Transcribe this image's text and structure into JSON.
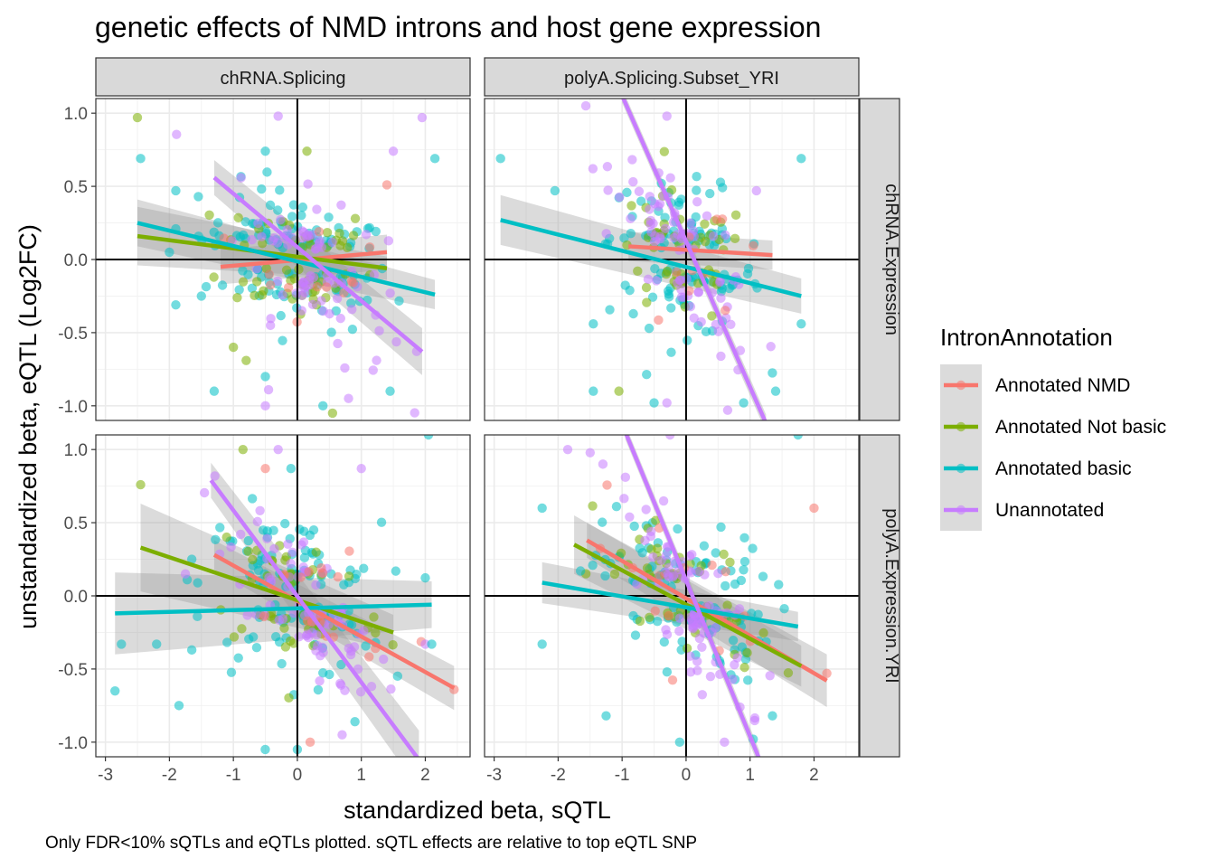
{
  "title": "genetic effects of NMD introns and host gene expression",
  "caption": "Only FDR<10% sQTLs and eQTLs plotted. sQTL effects are relative to top eQTL SNP",
  "colors": {
    "Annotated NMD": "#F8766D",
    "Annotated Not basic": "#7CAE00",
    "Annotated basic": "#00BFC4",
    "Unannotated": "#C77CFF",
    "strip_bg": "#D9D9D9",
    "grid": "#EBEBEB",
    "ribbon": "#999999"
  },
  "chart_data": {
    "type": "scatter",
    "facet_cols": [
      "chRNA.Splicing",
      "polyA.Splicing.Subset_YRI"
    ],
    "facet_rows": [
      "chRNA.Expression",
      "polyA.Expression.YRI"
    ],
    "xlabel": "standardized beta, sQTL",
    "ylabel": "unstandardized beta, eQTL (Log2FC)",
    "xlim": [
      -3.15,
      2.7
    ],
    "ylim": [
      -1.1,
      1.1
    ],
    "x_ticks": [
      -3,
      -2,
      -1,
      0,
      1,
      2
    ],
    "x_tick_labels": [
      "-3",
      "-2",
      "-1",
      "0",
      "1",
      "2"
    ],
    "y_ticks": [
      -1.0,
      -0.5,
      0.0,
      0.5,
      1.0
    ],
    "y_tick_labels": [
      "-1.0",
      "-0.5",
      "0.0",
      "0.5",
      "1.0"
    ],
    "legend": {
      "title": "IntronAnnotation",
      "position": "right",
      "entries": [
        "Annotated NMD",
        "Annotated Not basic",
        "Annotated basic",
        "Unannotated"
      ]
    },
    "panels": [
      {
        "col": "chRNA.Splicing",
        "row": "chRNA.Expression",
        "fits": [
          {
            "series": "Annotated NMD",
            "x": [
              -1.2,
              1.4
            ],
            "y": [
              -0.05,
              0.05
            ],
            "se": [
              0.12,
              0.12
            ]
          },
          {
            "series": "Annotated Not basic",
            "x": [
              -2.5,
              1.4
            ],
            "y": [
              0.16,
              -0.06
            ],
            "se": [
              0.2,
              0.08
            ]
          },
          {
            "series": "Annotated basic",
            "x": [
              -2.5,
              2.15
            ],
            "y": [
              0.25,
              -0.24
            ],
            "se": [
              0.16,
              0.1
            ]
          },
          {
            "series": "Unannotated",
            "x": [
              -1.3,
              1.95
            ],
            "y": [
              0.56,
              -0.63
            ],
            "se": [
              0.12,
              0.16
            ]
          }
        ],
        "fixed_points": [
          {
            "series": "Annotated Not basic",
            "x": -2.5,
            "y": 0.97
          },
          {
            "series": "Annotated basic",
            "x": -2.45,
            "y": 0.69
          },
          {
            "series": "Unannotated",
            "x": -0.3,
            "y": 0.98
          },
          {
            "series": "Unannotated",
            "x": 1.95,
            "y": 0.97
          },
          {
            "series": "Annotated basic",
            "x": 2.15,
            "y": 0.69
          },
          {
            "series": "Annotated Not basic",
            "x": 0.15,
            "y": 0.74
          },
          {
            "series": "Annotated basic",
            "x": -0.5,
            "y": 0.74
          },
          {
            "series": "Unannotated",
            "x": 1.5,
            "y": 0.74
          },
          {
            "series": "Annotated basic",
            "x": -1.9,
            "y": 0.47
          },
          {
            "series": "Annotated basic",
            "x": -1.3,
            "y": -0.9
          },
          {
            "series": "Annotated Not basic",
            "x": -1.0,
            "y": -0.6
          },
          {
            "series": "Annotated Not basic",
            "x": -0.8,
            "y": -0.69
          },
          {
            "series": "Annotated basic",
            "x": -0.5,
            "y": -0.8
          },
          {
            "series": "Unannotated",
            "x": -0.45,
            "y": -0.89
          },
          {
            "series": "Unannotated",
            "x": -0.5,
            "y": -1.0
          },
          {
            "series": "Annotated basic",
            "x": 0.4,
            "y": -1.0
          },
          {
            "series": "Annotated Not basic",
            "x": 0.55,
            "y": -1.05
          },
          {
            "series": "Annotated basic",
            "x": 1.45,
            "y": -0.9
          },
          {
            "series": "Unannotated",
            "x": 0.8,
            "y": -0.95
          },
          {
            "series": "Annotated NMD",
            "x": 1.4,
            "y": 0.51
          },
          {
            "series": "Annotated basic",
            "x": -1.9,
            "y": 0.21
          },
          {
            "series": "Annotated basic",
            "x": -2.0,
            "y": 0.05
          },
          {
            "series": "Annotated basic",
            "x": -1.9,
            "y": -0.31
          },
          {
            "series": "Annotated basic",
            "x": -1.5,
            "y": -0.25
          }
        ],
        "clouds": [
          {
            "series": "Annotated basic",
            "n": 110,
            "xm": 0.0,
            "xs": 0.75,
            "slope": -0.1,
            "ys": 0.22
          },
          {
            "series": "Annotated Not basic",
            "n": 55,
            "xm": 0.0,
            "xs": 0.6,
            "slope": -0.05,
            "ys": 0.22
          },
          {
            "series": "Unannotated",
            "n": 75,
            "xm": 0.2,
            "xs": 0.6,
            "slope": -0.3,
            "ys": 0.25
          },
          {
            "series": "Annotated NMD",
            "n": 12,
            "xm": 0.3,
            "xs": 0.5,
            "slope": 0.02,
            "ys": 0.2
          }
        ]
      },
      {
        "col": "polyA.Splicing.Subset_YRI",
        "row": "chRNA.Expression",
        "fits": [
          {
            "series": "Annotated NMD",
            "x": [
              -0.9,
              1.35
            ],
            "y": [
              0.09,
              0.03
            ],
            "se": [
              0.1,
              0.1
            ]
          },
          {
            "series": "Annotated Not basic",
            "x": -1.15,
            "y": 0,
            "se": 0,
            "_x": 0
          },
          {
            "series": "Annotated basic",
            "x": [
              -2.9,
              1.8
            ],
            "y": [
              0.27,
              -0.25
            ],
            "se": [
              0.17,
              0.12
            ]
          },
          {
            "series": "Unannotated",
            "x": [
              -1.0,
              1.25
            ],
            "y": [
              1.12,
              -1.12
            ],
            "se": [
              0.05,
              0.06
            ]
          }
        ],
        "fixed_points": [
          {
            "series": "Annotated basic",
            "x": -2.9,
            "y": 0.69
          },
          {
            "series": "Annotated basic",
            "x": -2.05,
            "y": 0.47
          },
          {
            "series": "Unannotated",
            "x": -0.3,
            "y": 0.98
          },
          {
            "series": "Annotated basic",
            "x": 1.8,
            "y": 0.69
          },
          {
            "series": "Annotated basic",
            "x": -1.45,
            "y": -0.9
          },
          {
            "series": "Annotated Not basic",
            "x": -1.05,
            "y": -0.9
          },
          {
            "series": "Annotated basic",
            "x": -0.5,
            "y": -0.98
          },
          {
            "series": "Unannotated",
            "x": -0.3,
            "y": -0.98
          },
          {
            "series": "Annotated basic",
            "x": 1.4,
            "y": -0.9
          },
          {
            "series": "Annotated basic",
            "x": 1.8,
            "y": -0.44
          },
          {
            "series": "Annotated basic",
            "x": -1.45,
            "y": -0.44
          },
          {
            "series": "Unannotated",
            "x": 0.65,
            "y": -1.03
          },
          {
            "series": "Annotated basic",
            "x": 0.9,
            "y": -0.98
          },
          {
            "series": "Unannotated",
            "x": 1.1,
            "y": 0.47
          }
        ],
        "clouds": [
          {
            "series": "Annotated basic",
            "n": 110,
            "xm": 0.0,
            "xs": 0.6,
            "slope": -0.1,
            "ys": 0.25
          },
          {
            "series": "Annotated Not basic",
            "n": 50,
            "xm": -0.1,
            "xs": 0.55,
            "slope": -0.05,
            "ys": 0.22
          },
          {
            "series": "Unannotated",
            "n": 80,
            "xm": 0.0,
            "xs": 0.55,
            "slope": -0.55,
            "ys": 0.2
          },
          {
            "series": "Annotated NMD",
            "n": 10,
            "xm": 0.4,
            "xs": 0.5,
            "slope": 0.0,
            "ys": 0.2
          }
        ]
      },
      {
        "col": "chRNA.Splicing",
        "row": "polyA.Expression.YRI",
        "fits": [
          {
            "series": "Annotated NMD",
            "x": [
              -1.3,
              2.45
            ],
            "y": [
              0.28,
              -0.63
            ],
            "se": [
              0.1,
              0.15
            ]
          },
          {
            "series": "Annotated Not basic",
            "x": [
              -2.45,
              1.5
            ],
            "y": [
              0.33,
              -0.25
            ],
            "se": [
              0.3,
              0.12
            ]
          },
          {
            "series": "Annotated basic",
            "x": [
              -2.85,
              2.1
            ],
            "y": [
              -0.12,
              -0.06
            ],
            "se": [
              0.28,
              0.16
            ]
          },
          {
            "series": "Unannotated",
            "x": [
              -1.35,
              1.9
            ],
            "y": [
              0.79,
              -1.12
            ],
            "se": [
              0.12,
              0.2
            ]
          }
        ],
        "fixed_points": [
          {
            "series": "Annotated basic",
            "x": -2.85,
            "y": -0.65
          },
          {
            "series": "Annotated Not basic",
            "x": -2.45,
            "y": 0.76
          },
          {
            "series": "Annotated basic",
            "x": -2.75,
            "y": -0.33
          },
          {
            "series": "Annotated basic",
            "x": -1.85,
            "y": -0.75
          },
          {
            "series": "Annotated basic",
            "x": -2.2,
            "y": -0.33
          },
          {
            "series": "Annotated basic",
            "x": -1.65,
            "y": -0.37
          },
          {
            "series": "Unannotated",
            "x": -0.3,
            "y": 1.0
          },
          {
            "series": "Annotated NMD",
            "x": -0.5,
            "y": 0.87
          },
          {
            "series": "Annotated Not basic",
            "x": -0.85,
            "y": 1.0
          },
          {
            "series": "Annotated basic",
            "x": -0.1,
            "y": 0.87
          },
          {
            "series": "Unannotated",
            "x": 1.0,
            "y": 0.87
          },
          {
            "series": "Annotated basic",
            "x": 2.05,
            "y": 1.1
          },
          {
            "series": "Unannotated",
            "x": -1.75,
            "y": 0.15
          },
          {
            "series": "Annotated basic",
            "x": -1.65,
            "y": 0.25
          },
          {
            "series": "Annotated basic",
            "x": 0.9,
            "y": -0.86
          },
          {
            "series": "Annotated NMD",
            "x": 0.2,
            "y": -1.0
          },
          {
            "series": "Annotated basic",
            "x": 0.0,
            "y": -1.05
          },
          {
            "series": "Unannotated",
            "x": 0.7,
            "y": -0.95
          },
          {
            "series": "Annotated NMD",
            "x": 2.45,
            "y": -0.64
          },
          {
            "series": "Unannotated",
            "x": 2.0,
            "y": -0.33
          },
          {
            "series": "Annotated basic",
            "x": 2.1,
            "y": -0.33
          }
        ],
        "clouds": [
          {
            "series": "Annotated basic",
            "n": 110,
            "xm": -0.1,
            "xs": 0.7,
            "slope": -0.05,
            "ys": 0.28
          },
          {
            "series": "Annotated Not basic",
            "n": 50,
            "xm": 0.0,
            "xs": 0.7,
            "slope": -0.12,
            "ys": 0.25
          },
          {
            "series": "Unannotated",
            "n": 80,
            "xm": 0.15,
            "xs": 0.55,
            "slope": -0.45,
            "ys": 0.22
          },
          {
            "series": "Annotated NMD",
            "n": 18,
            "xm": 0.3,
            "xs": 0.8,
            "slope": -0.2,
            "ys": 0.2
          }
        ]
      },
      {
        "col": "polyA.Splicing.Subset_YRI",
        "row": "polyA.Expression.YRI",
        "fits": [
          {
            "series": "Annotated NMD",
            "x": [
              -1.55,
              2.2
            ],
            "y": [
              0.38,
              -0.58
            ],
            "se": [
              0.12,
              0.18
            ]
          },
          {
            "series": "Annotated Not basic",
            "x": [
              -1.75,
              1.8
            ],
            "y": [
              0.35,
              -0.48
            ],
            "se": [
              0.2,
              0.14
            ]
          },
          {
            "series": "Annotated basic",
            "x": [
              -2.25,
              1.75
            ],
            "y": [
              0.09,
              -0.21
            ],
            "se": [
              0.14,
              0.1
            ]
          },
          {
            "series": "Unannotated",
            "x": [
              -0.95,
              1.15
            ],
            "y": [
              1.12,
              -1.12
            ],
            "se": [
              0.05,
              0.06
            ]
          }
        ],
        "fixed_points": [
          {
            "series": "Annotated basic",
            "x": -2.25,
            "y": 0.6
          },
          {
            "series": "Annotated basic",
            "x": -2.25,
            "y": -0.33
          },
          {
            "series": "Unannotated",
            "x": -1.85,
            "y": 1.0
          },
          {
            "series": "Unannotated",
            "x": -0.25,
            "y": 1.1
          },
          {
            "series": "Annotated NMD",
            "x": 2.0,
            "y": 0.6
          },
          {
            "series": "Annotated basic",
            "x": 1.75,
            "y": 1.1
          },
          {
            "series": "Annotated NMD",
            "x": 2.2,
            "y": -0.53
          },
          {
            "series": "Annotated basic",
            "x": -1.25,
            "y": -0.82
          },
          {
            "series": "Annotated basic",
            "x": -0.1,
            "y": -1.0
          },
          {
            "series": "Unannotated",
            "x": 0.6,
            "y": -1.0
          },
          {
            "series": "Annotated basic",
            "x": 1.05,
            "y": -0.98
          },
          {
            "series": "Annotated basic",
            "x": 1.35,
            "y": -0.82
          },
          {
            "series": "Unannotated",
            "x": -1.3,
            "y": 0.9
          },
          {
            "series": "Annotated basic",
            "x": -1.65,
            "y": 0.17
          }
        ],
        "clouds": [
          {
            "series": "Annotated basic",
            "n": 110,
            "xm": 0.0,
            "xs": 0.65,
            "slope": -0.12,
            "ys": 0.25
          },
          {
            "series": "Annotated Not basic",
            "n": 50,
            "xm": 0.0,
            "xs": 0.7,
            "slope": -0.2,
            "ys": 0.22
          },
          {
            "series": "Unannotated",
            "n": 80,
            "xm": 0.0,
            "xs": 0.5,
            "slope": -0.6,
            "ys": 0.2
          },
          {
            "series": "Annotated NMD",
            "n": 15,
            "xm": 0.2,
            "xs": 0.9,
            "slope": -0.25,
            "ys": 0.2
          }
        ]
      }
    ]
  }
}
